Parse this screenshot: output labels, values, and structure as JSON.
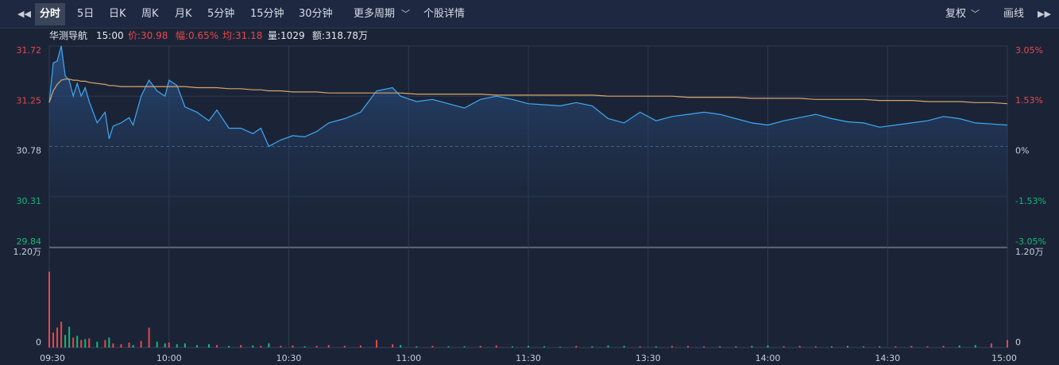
{
  "toolbar": {
    "items": [
      "分时",
      "5日",
      "日K",
      "周K",
      "月K",
      "5分钟",
      "15分钟",
      "30分钟",
      "更多周期",
      "个股详情"
    ],
    "right": [
      "复权",
      "画线"
    ]
  },
  "info": {
    "name": "华测导航",
    "time": "15:00",
    "price": "价:30.98",
    "change": "幅:0.65%",
    "avg": "均:31.18",
    "volume": "量:1029",
    "amount": "额:318.78万"
  },
  "chart_data": [
    {
      "type": "line",
      "x": [
        0,
        1,
        2,
        3,
        4,
        5,
        6,
        7,
        8,
        9,
        10,
        12,
        14,
        15,
        16,
        18,
        20,
        21,
        23,
        25,
        27,
        29,
        30,
        32,
        34,
        37,
        40,
        42,
        45,
        48,
        51,
        53,
        55,
        58,
        61,
        64,
        67,
        70,
        74,
        78,
        82,
        86,
        88,
        92,
        96,
        100,
        104,
        108,
        112,
        116,
        120,
        124,
        128,
        132,
        136,
        140,
        144,
        148,
        152,
        156,
        160,
        164,
        168,
        172,
        176,
        180,
        184,
        188,
        192,
        196,
        200,
        204,
        208,
        212,
        216,
        220,
        224,
        228,
        232,
        236,
        240
      ],
      "series": [
        {
          "color": "#3fa9f5",
          "values": [
            31.19,
            31.56,
            31.58,
            31.72,
            31.44,
            31.4,
            31.25,
            31.37,
            31.25,
            31.33,
            31.2,
            31.0,
            31.1,
            30.85,
            30.97,
            31.0,
            31.05,
            30.98,
            31.25,
            31.4,
            31.3,
            31.25,
            31.4,
            31.35,
            31.15,
            31.1,
            31.02,
            31.12,
            30.95,
            30.95,
            30.9,
            30.95,
            30.78,
            30.84,
            30.88,
            30.87,
            30.92,
            31.0,
            31.04,
            31.1,
            31.3,
            31.33,
            31.25,
            31.2,
            31.22,
            31.18,
            31.14,
            31.22,
            31.25,
            31.22,
            31.18,
            31.17,
            31.16,
            31.19,
            31.16,
            31.04,
            31.0,
            31.1,
            31.02,
            31.06,
            31.08,
            31.1,
            31.08,
            31.04,
            31.0,
            30.98,
            31.02,
            31.05,
            31.08,
            31.04,
            31.01,
            31.0,
            30.96,
            30.98,
            31.0,
            31.02,
            31.06,
            31.04,
            31.0,
            30.99,
            30.98
          ]
        },
        {
          "color": "#d9a56b",
          "values": [
            31.19,
            31.3,
            31.36,
            31.4,
            31.41,
            31.41,
            31.4,
            31.4,
            31.39,
            31.39,
            31.38,
            31.37,
            31.36,
            31.35,
            31.35,
            31.34,
            31.34,
            31.34,
            31.34,
            31.34,
            31.34,
            31.34,
            31.34,
            31.34,
            31.34,
            31.33,
            31.33,
            31.33,
            31.32,
            31.32,
            31.31,
            31.31,
            31.3,
            31.3,
            31.29,
            31.29,
            31.29,
            31.28,
            31.28,
            31.28,
            31.28,
            31.28,
            31.28,
            31.27,
            31.27,
            31.27,
            31.27,
            31.27,
            31.26,
            31.26,
            31.26,
            31.26,
            31.26,
            31.26,
            31.26,
            31.25,
            31.25,
            31.25,
            31.25,
            31.25,
            31.24,
            31.24,
            31.24,
            31.24,
            31.23,
            31.23,
            31.23,
            31.23,
            31.22,
            31.22,
            31.22,
            31.22,
            31.21,
            31.21,
            31.21,
            31.2,
            31.2,
            31.2,
            31.19,
            31.19,
            31.18
          ]
        }
      ],
      "xlim": [
        0,
        240
      ],
      "ylim": [
        29.84,
        31.72
      ],
      "yticks": [
        29.84,
        30.31,
        30.78,
        31.25,
        31.72
      ],
      "y2lim": [
        -3.05,
        3.05
      ],
      "y2ticks": [
        {
          "value": -3.05,
          "label": "-3.05%"
        },
        {
          "value": -1.53,
          "label": "-1.53%"
        },
        {
          "value": 0,
          "label": "0%"
        },
        {
          "value": 1.53,
          "label": "1.53%"
        },
        {
          "value": 3.05,
          "label": "3.05%"
        }
      ],
      "grid": true
    },
    {
      "type": "bar",
      "x": [
        0,
        1,
        2,
        3,
        4,
        5,
        6,
        7,
        8,
        9,
        10,
        12,
        14,
        15,
        16,
        18,
        20,
        21,
        23,
        25,
        27,
        29,
        30,
        32,
        34,
        37,
        40,
        42,
        45,
        48,
        51,
        53,
        55,
        58,
        61,
        64,
        67,
        70,
        74,
        78,
        82,
        86,
        88,
        92,
        96,
        100,
        104,
        108,
        112,
        116,
        120,
        124,
        128,
        132,
        136,
        140,
        144,
        148,
        152,
        156,
        160,
        164,
        168,
        172,
        176,
        180,
        184,
        188,
        192,
        196,
        200,
        204,
        208,
        212,
        216,
        220,
        224,
        228,
        232,
        236,
        240
      ],
      "values": [
        9100,
        1800,
        2400,
        3100,
        1500,
        2500,
        1200,
        1400,
        900,
        1000,
        1100,
        700,
        900,
        1200,
        500,
        400,
        600,
        300,
        800,
        2400,
        700,
        500,
        600,
        400,
        500,
        300,
        400,
        300,
        200,
        300,
        250,
        200,
        500,
        200,
        250,
        150,
        200,
        300,
        200,
        250,
        900,
        400,
        300,
        150,
        200,
        150,
        150,
        200,
        250,
        150,
        200,
        150,
        100,
        200,
        150,
        250,
        200,
        150,
        150,
        200,
        200,
        150,
        150,
        150,
        200,
        250,
        150,
        200,
        150,
        150,
        200,
        150,
        150,
        150,
        200,
        150,
        200,
        250,
        300,
        500,
        900
      ],
      "colors": [
        "#e8474a",
        "#e8474a",
        "#e8474a",
        "#e8474a",
        "#16b876",
        "#16b876",
        "#e8474a",
        "#16b876",
        "#e8474a",
        "#16b876",
        "#e8474a",
        "#16b876",
        "#e8474a",
        "#16b876",
        "#e8474a",
        "#e8474a",
        "#e8474a",
        "#16b876",
        "#e8474a",
        "#e8474a",
        "#16b876",
        "#16b876",
        "#e8474a",
        "#16b876",
        "#16b876",
        "#16b876",
        "#16b876",
        "#e8474a",
        "#16b876",
        "#e8474a",
        "#16b876",
        "#e8474a",
        "#16b876",
        "#e8474a",
        "#e8474a",
        "#16b876",
        "#e8474a",
        "#e8474a",
        "#e8474a",
        "#e8474a",
        "#e8474a",
        "#e8474a",
        "#16b876",
        "#16b876",
        "#e8474a",
        "#16b876",
        "#16b876",
        "#e8474a",
        "#e8474a",
        "#16b876",
        "#16b876",
        "#16b876",
        "#16b876",
        "#e8474a",
        "#16b876",
        "#16b876",
        "#16b876",
        "#e8474a",
        "#16b876",
        "#e8474a",
        "#e8474a",
        "#e8474a",
        "#16b876",
        "#16b876",
        "#16b876",
        "#16b876",
        "#e8474a",
        "#e8474a",
        "#e8474a",
        "#16b876",
        "#16b876",
        "#16b876",
        "#16b876",
        "#e8474a",
        "#e8474a",
        "#e8474a",
        "#e8474a",
        "#16b876",
        "#16b876",
        "#e8474a",
        "#e8474a"
      ],
      "xlim": [
        0,
        240
      ],
      "xticks": [
        {
          "value": 0,
          "label": "09:30"
        },
        {
          "value": 30,
          "label": "10:00"
        },
        {
          "value": 60,
          "label": "10:30"
        },
        {
          "value": 90,
          "label": "11:00"
        },
        {
          "value": 120,
          "label": "11:30"
        },
        {
          "value": 150,
          "label": "13:30"
        },
        {
          "value": 180,
          "label": "14:00"
        },
        {
          "value": 210,
          "label": "14:30"
        },
        {
          "value": 240,
          "label": "15:00"
        }
      ],
      "ylim": [
        0,
        12000
      ],
      "yticks": [
        0,
        {
          "value": 12000,
          "label": "1.20万"
        }
      ],
      "grid": true
    }
  ]
}
